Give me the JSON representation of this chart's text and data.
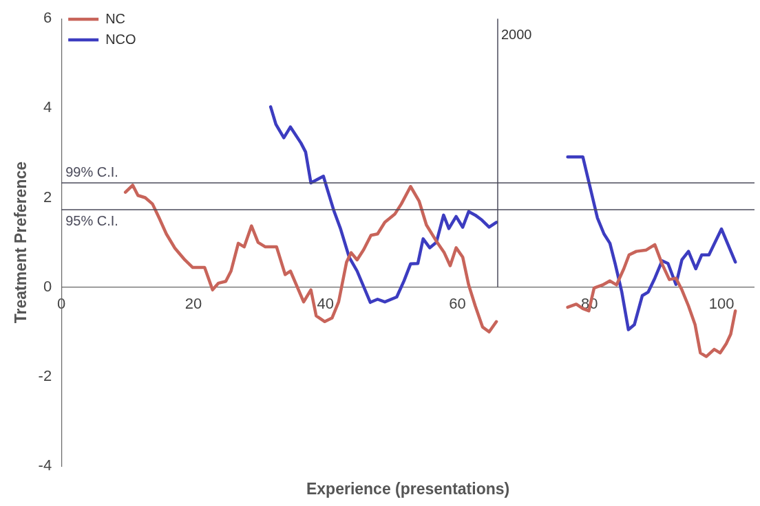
{
  "chart_data": {
    "type": "line",
    "xlabel": "Experience (presentations)",
    "ylabel": "Treatment Preference",
    "xlim": [
      0,
      105
    ],
    "xticks": [
      0,
      20,
      40,
      60,
      80,
      100
    ],
    "ylim": [
      -4,
      6
    ],
    "yticks": [
      -4,
      -2,
      0,
      2,
      4,
      6
    ],
    "grid": false,
    "legend": "top left",
    "marker": "none",
    "line_style": "solid",
    "series": [
      {
        "name": "NC",
        "color": "#c8645a",
        "x": [
          9.7,
          10.8,
          11.6,
          12.7,
          13.8,
          14.8,
          15.9,
          17.2,
          18.7,
          19.9,
          21.7,
          22.9,
          23.8,
          24.9,
          25.7,
          26.8,
          27.7,
          28.8,
          29.8,
          30.9,
          32.6,
          33.9,
          34.7,
          36.7,
          37.8,
          38.6,
          39.9,
          41.0,
          42.0,
          43.2,
          43.9,
          44.8,
          45.8,
          46.9,
          47.9,
          49.0,
          50.5,
          51.5,
          52.9,
          54.2,
          55.3,
          56.8,
          58.0,
          58.9,
          59.8,
          60.8,
          61.7,
          62.7,
          63.8,
          64.8,
          65.9,
          71,
          76.7,
          78.0,
          79.0,
          79.9,
          80.7,
          82.0,
          83.1,
          84.1,
          85.2,
          86.0,
          87.1,
          88.6,
          89.9,
          91.0,
          92.1,
          93.1,
          94.0,
          95.0,
          96.0,
          96.8,
          97.7,
          98.9,
          99.8,
          100.7,
          101.4,
          102.1
        ],
        "values": [
          2.12,
          2.28,
          2.05,
          2.0,
          1.86,
          1.55,
          1.19,
          0.87,
          0.61,
          0.44,
          0.44,
          -0.06,
          0.09,
          0.13,
          0.36,
          0.98,
          0.9,
          1.37,
          1.0,
          0.9,
          0.9,
          0.28,
          0.36,
          -0.33,
          -0.06,
          -0.64,
          -0.77,
          -0.69,
          -0.33,
          0.56,
          0.77,
          0.61,
          0.84,
          1.16,
          1.19,
          1.45,
          1.63,
          1.86,
          2.25,
          1.92,
          1.39,
          1.03,
          0.77,
          0.48,
          0.88,
          0.67,
          0.05,
          -0.42,
          -0.89,
          -1.0,
          -0.77,
          null,
          -0.45,
          -0.38,
          -0.48,
          -0.53,
          -0.02,
          0.05,
          0.14,
          0.05,
          0.41,
          0.72,
          0.8,
          0.83,
          0.95,
          0.52,
          0.17,
          0.2,
          -0.06,
          -0.42,
          -0.84,
          -1.47,
          -1.55,
          -1.39,
          -1.47,
          -1.27,
          -1.05,
          -0.53
        ]
      },
      {
        "name": "NCO",
        "color": "#3c3cc0",
        "x": [
          31.7,
          32.5,
          33.7,
          34.7,
          36.3,
          37.0,
          37.8,
          39.7,
          40.2,
          41.3,
          42.3,
          43.6,
          44.8,
          46.8,
          47.9,
          49.0,
          50.8,
          51.9,
          52.9,
          54.0,
          54.8,
          55.8,
          56.8,
          57.9,
          58.7,
          59.8,
          60.8,
          61.7,
          62.7,
          63.7,
          64.8,
          65.9,
          71,
          76.7,
          79.0,
          80.1,
          81.2,
          82.2,
          83.1,
          83.9,
          84.9,
          85.9,
          86.8,
          88.0,
          88.9,
          89.9,
          91.0,
          91.9,
          93.1,
          94.0,
          95.0,
          96.1,
          97.0,
          98.1,
          100.0,
          102.1
        ],
        "values": [
          4.03,
          3.64,
          3.34,
          3.58,
          3.22,
          3.02,
          2.33,
          2.48,
          2.23,
          1.7,
          1.3,
          0.67,
          0.36,
          -0.34,
          -0.27,
          -0.33,
          -0.22,
          0.14,
          0.52,
          0.53,
          1.08,
          0.88,
          1.0,
          1.61,
          1.31,
          1.58,
          1.34,
          1.69,
          1.61,
          1.5,
          1.34,
          1.45,
          null,
          2.91,
          2.91,
          2.23,
          1.55,
          1.19,
          0.98,
          0.52,
          -0.11,
          -0.95,
          -0.84,
          -0.19,
          -0.11,
          0.2,
          0.59,
          0.53,
          0.06,
          0.61,
          0.8,
          0.41,
          0.72,
          0.72,
          1.3,
          0.56
        ]
      }
    ],
    "ref_lines": [
      {
        "axis": "y",
        "value": 2.33,
        "label": "99% C.I.",
        "color": "#4a4a5a"
      },
      {
        "axis": "y",
        "value": 1.73,
        "label": "95% C.I.",
        "color": "#4a4a5a"
      },
      {
        "axis": "x",
        "value": 66.1,
        "color": "#4a4a5a"
      }
    ],
    "annotations": [
      {
        "text": "2000",
        "x": 66.1,
        "y": 6
      }
    ]
  }
}
